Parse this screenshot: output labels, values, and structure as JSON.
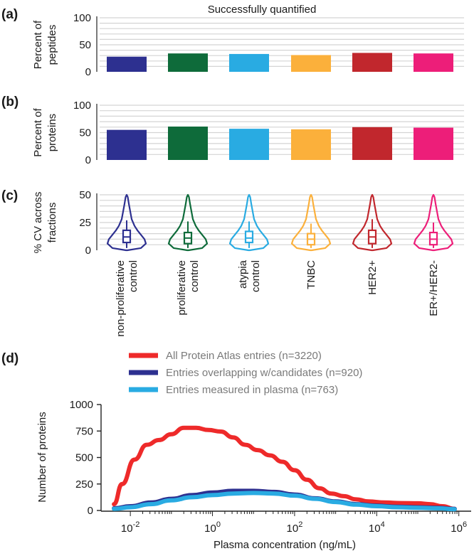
{
  "colors": {
    "navy": "#2d3090",
    "green": "#0e6b3a",
    "sky": "#29abe2",
    "orange": "#fbb03b",
    "crimson": "#c1272d",
    "pink": "#ed1e79",
    "red": "#ee2a2a",
    "grid": "#d4d4d4",
    "axis": "#222222"
  },
  "chart_data": [
    {
      "type": "bar",
      "label": "(a)",
      "title": "Successfully quantified",
      "ylabel": [
        "Percent of",
        "peptides"
      ],
      "ylim": [
        0,
        100
      ],
      "yticks": [
        0,
        50,
        100
      ],
      "categories": [
        "non-proliferative control",
        "proliferative control",
        "atypia control",
        "TNBC",
        "HER2+",
        "ER+/HER2-"
      ],
      "values": [
        28,
        34,
        33,
        31,
        35,
        34
      ],
      "colors": [
        "#2d3090",
        "#0e6b3a",
        "#29abe2",
        "#fbb03b",
        "#c1272d",
        "#ed1e79"
      ]
    },
    {
      "type": "bar",
      "label": "(b)",
      "ylabel": [
        "Percent of",
        "proteins"
      ],
      "ylim": [
        0,
        100
      ],
      "yticks": [
        0,
        50,
        100
      ],
      "categories": [
        "non-proliferative control",
        "proliferative control",
        "atypia control",
        "TNBC",
        "HER2+",
        "ER+/HER2-"
      ],
      "values": [
        55,
        61,
        57,
        56,
        60,
        59
      ],
      "colors": [
        "#2d3090",
        "#0e6b3a",
        "#29abe2",
        "#fbb03b",
        "#c1272d",
        "#ed1e79"
      ]
    },
    {
      "type": "violin",
      "label": "(c)",
      "ylabel": [
        "% CV across",
        "fractions"
      ],
      "ylim": [
        0,
        50
      ],
      "yticks": [
        0,
        25,
        50
      ],
      "categories": [
        {
          "lines": [
            "non-proliferative",
            "control"
          ]
        },
        {
          "lines": [
            "proliferative",
            "control"
          ]
        },
        {
          "lines": [
            "atypia",
            "control"
          ]
        },
        {
          "lines": [
            "TNBC"
          ]
        },
        {
          "lines": [
            "HER2+"
          ]
        },
        {
          "lines": [
            "ER+/HER2-"
          ]
        }
      ],
      "boxes": [
        {
          "q1": 7,
          "median": 12,
          "q3": 18,
          "wlo": 2,
          "whi": 27,
          "max": 50
        },
        {
          "q1": 6,
          "median": 11,
          "q3": 16,
          "wlo": 2,
          "whi": 26,
          "max": 50
        },
        {
          "q1": 7,
          "median": 11,
          "q3": 17,
          "wlo": 2,
          "whi": 26,
          "max": 50
        },
        {
          "q1": 5,
          "median": 10,
          "q3": 15,
          "wlo": 2,
          "whi": 24,
          "max": 50
        },
        {
          "q1": 6,
          "median": 12,
          "q3": 18,
          "wlo": 2,
          "whi": 28,
          "max": 50
        },
        {
          "q1": 5,
          "median": 10,
          "q3": 16,
          "wlo": 2,
          "whi": 25,
          "max": 50
        }
      ],
      "colors": [
        "#2d3090",
        "#0e6b3a",
        "#29abe2",
        "#fbb03b",
        "#c1272d",
        "#ed1e79"
      ]
    },
    {
      "type": "line",
      "label": "(d)",
      "xlabel": "Plasma concentration (ng/mL)",
      "ylabel": "Number of proteins",
      "xscale": "log10",
      "xlim_log10": [
        -2.8,
        6.3
      ],
      "ylim": [
        0,
        1000
      ],
      "yticks": [
        0,
        250,
        500,
        750,
        1000
      ],
      "xticks_log10": [
        -2,
        0,
        2,
        4,
        6
      ],
      "xtick_base": "10",
      "xtick_exponents": [
        "-2",
        "0",
        "2",
        "4",
        "6"
      ],
      "legend_position": "top-center",
      "series": [
        {
          "name": "All Protein Atlas entries (n=3220)",
          "color": "#ee2a2a",
          "x_log10": [
            -2.4,
            -2.2,
            -1.9,
            -1.6,
            -1.3,
            -1.0,
            -0.7,
            -0.4,
            -0.1,
            0.2,
            0.5,
            0.8,
            1.1,
            1.4,
            1.7,
            2.0,
            2.3,
            2.6,
            2.9,
            3.2,
            3.5,
            3.8,
            4.2,
            4.6,
            5.0,
            5.3,
            5.6,
            5.9
          ],
          "y": [
            60,
            250,
            480,
            620,
            665,
            720,
            780,
            780,
            760,
            745,
            690,
            620,
            570,
            520,
            460,
            380,
            290,
            210,
            160,
            135,
            105,
            85,
            75,
            70,
            68,
            60,
            40,
            15
          ]
        },
        {
          "name": "Entries overlapping w/candidates (n=920)",
          "color": "#2d3090",
          "x_log10": [
            -2.4,
            -2.0,
            -1.5,
            -1.0,
            -0.5,
            0.0,
            0.5,
            1.0,
            1.5,
            2.0,
            2.5,
            3.0,
            3.5,
            4.0,
            4.5,
            5.0,
            5.5,
            5.9
          ],
          "y": [
            20,
            40,
            75,
            110,
            145,
            170,
            185,
            185,
            175,
            150,
            115,
            85,
            60,
            45,
            35,
            30,
            25,
            15
          ]
        },
        {
          "name": "Entries measured in plasma (n=763)",
          "color": "#29abe2",
          "x_log10": [
            -2.4,
            -2.0,
            -1.5,
            -1.0,
            -0.5,
            0.0,
            0.5,
            1.0,
            1.5,
            2.0,
            2.5,
            3.0,
            3.5,
            4.0,
            4.5,
            5.0,
            5.5,
            5.9
          ],
          "y": [
            15,
            30,
            60,
            95,
            125,
            145,
            160,
            165,
            160,
            140,
            110,
            80,
            55,
            40,
            30,
            25,
            20,
            12
          ]
        }
      ]
    }
  ]
}
